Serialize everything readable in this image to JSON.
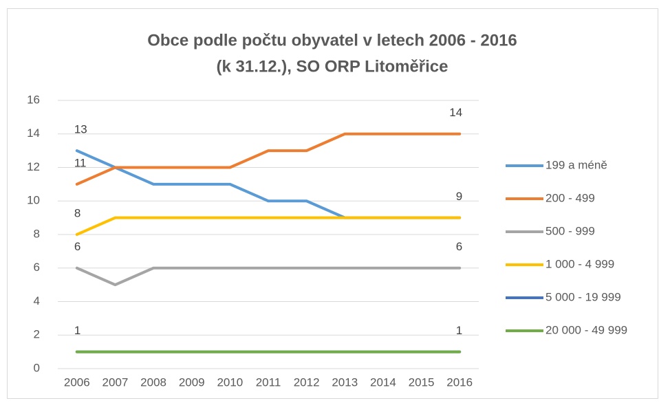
{
  "chart_data": {
    "type": "line",
    "title": [
      "Obce podle počtu obyvatel v letech 2006 - 2016",
      "(k 31.12.), SO ORP Litoměřice"
    ],
    "categories": [
      "2006",
      "2007",
      "2008",
      "2009",
      "2010",
      "2011",
      "2012",
      "2013",
      "2014",
      "2015",
      "2016"
    ],
    "series": [
      {
        "name": "199 a méně",
        "color": "#5b9bd5",
        "values": [
          13,
          12,
          11,
          11,
          11,
          10,
          10,
          9,
          9,
          9,
          9
        ],
        "data_labels": [
          "first"
        ]
      },
      {
        "name": "200 - 499",
        "color": "#ed7d31",
        "values": [
          11,
          12,
          12,
          12,
          12,
          13,
          13,
          14,
          14,
          14,
          14
        ],
        "data_labels": [
          "first",
          "last"
        ]
      },
      {
        "name": "500 - 999",
        "color": "#a5a5a5",
        "values": [
          6,
          5,
          6,
          6,
          6,
          6,
          6,
          6,
          6,
          6,
          6
        ],
        "data_labels": [
          "first",
          "last"
        ]
      },
      {
        "name": "1 000 - 4 999",
        "color": "#ffc000",
        "values": [
          8,
          9,
          9,
          9,
          9,
          9,
          9,
          9,
          9,
          9,
          9
        ],
        "data_labels": [
          "first",
          "last"
        ]
      },
      {
        "name": "5 000 - 19 999",
        "color": "#4472c4",
        "values": [
          1,
          1,
          1,
          1,
          1,
          1,
          1,
          1,
          1,
          1,
          1
        ],
        "data_labels": []
      },
      {
        "name": "20 000 - 49 999",
        "color": "#70ad47",
        "values": [
          1,
          1,
          1,
          1,
          1,
          1,
          1,
          1,
          1,
          1,
          1
        ],
        "data_labels": [
          "first",
          "last"
        ]
      }
    ],
    "ylim": [
      0,
      16
    ],
    "yticks": [
      0,
      2,
      4,
      6,
      8,
      10,
      12,
      14,
      16
    ],
    "grid": true,
    "legend": "right"
  }
}
